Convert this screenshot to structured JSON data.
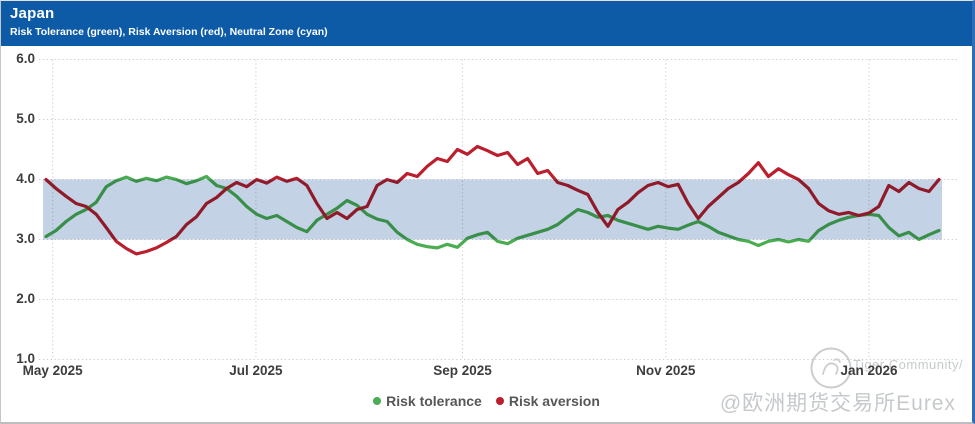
{
  "header": {
    "title": "Japan",
    "subtitle": "Risk Tolerance (green), Risk Aversion (red), Neutral Zone (cyan)"
  },
  "colors": {
    "header_bg": "#0d5aa7",
    "tolerance_green": "#4aad52",
    "aversion_red": "#bb1f2e",
    "neutral_band": "#c3d2e4",
    "grid": "#cdcdcd",
    "axis_text": "#3d3d3d",
    "panel_right_border": "#2f6eb6"
  },
  "axes": {
    "y_ticks": [
      "6.0",
      "5.0",
      "4.0",
      "3.0",
      "2.0",
      "1.0"
    ]
  },
  "watermark": {
    "line1": "Tiger Community/",
    "line2": "@欧洲期货交易所Eurex",
    "logo": "tiger-community-circle-logo"
  },
  "chart_data": {
    "type": "line",
    "title": "Japan",
    "subtitle": "Risk Tolerance (green), Risk Aversion (red), Neutral Zone (cyan)",
    "ylim": [
      1.0,
      6.0
    ],
    "neutral_zone": [
      3.0,
      4.0
    ],
    "grid": "dotted",
    "legend_position": "bottom-center",
    "x_start": "2025-04-29",
    "x_end": "2026-01-22",
    "total_days": 268,
    "points_interval_days": 3,
    "x_ticks": [
      {
        "label": "May 2025",
        "day": 2
      },
      {
        "label": "Jul 2025",
        "day": 63
      },
      {
        "label": "Sep 2025",
        "day": 125
      },
      {
        "label": "Nov 2025",
        "day": 186
      },
      {
        "label": "Jan 2026",
        "day": 247
      }
    ],
    "series": [
      {
        "name": "Risk tolerance",
        "color": "#4aad52",
        "values": [
          3.05,
          3.15,
          3.3,
          3.42,
          3.5,
          3.62,
          3.88,
          3.98,
          4.04,
          3.97,
          4.02,
          3.98,
          4.04,
          4.0,
          3.93,
          3.98,
          4.05,
          3.9,
          3.85,
          3.72,
          3.55,
          3.42,
          3.35,
          3.4,
          3.3,
          3.2,
          3.13,
          3.32,
          3.42,
          3.52,
          3.65,
          3.57,
          3.42,
          3.34,
          3.3,
          3.12,
          3.0,
          2.92,
          2.88,
          2.86,
          2.92,
          2.87,
          3.02,
          3.08,
          3.12,
          2.97,
          2.93,
          3.02,
          3.07,
          3.12,
          3.17,
          3.25,
          3.38,
          3.5,
          3.45,
          3.37,
          3.4,
          3.32,
          3.27,
          3.22,
          3.17,
          3.22,
          3.19,
          3.17,
          3.24,
          3.3,
          3.22,
          3.12,
          3.06,
          3.0,
          2.97,
          2.9,
          2.97,
          3.0,
          2.96,
          3.0,
          2.97,
          3.15,
          3.25,
          3.32,
          3.37,
          3.4,
          3.42,
          3.4,
          3.2,
          3.06,
          3.12,
          3.0,
          3.08,
          3.15
        ]
      },
      {
        "name": "Risk aversion",
        "color": "#bb1f2e",
        "values": [
          4.0,
          3.85,
          3.72,
          3.6,
          3.55,
          3.42,
          3.2,
          2.97,
          2.85,
          2.76,
          2.8,
          2.86,
          2.95,
          3.05,
          3.25,
          3.38,
          3.6,
          3.7,
          3.85,
          3.95,
          3.88,
          4.0,
          3.94,
          4.04,
          3.97,
          4.02,
          3.9,
          3.6,
          3.35,
          3.45,
          3.35,
          3.5,
          3.55,
          3.9,
          4.0,
          3.95,
          4.1,
          4.05,
          4.22,
          4.35,
          4.3,
          4.5,
          4.42,
          4.55,
          4.48,
          4.4,
          4.45,
          4.25,
          4.35,
          4.1,
          4.15,
          3.95,
          3.9,
          3.82,
          3.75,
          3.45,
          3.22,
          3.5,
          3.62,
          3.78,
          3.9,
          3.95,
          3.88,
          3.92,
          3.6,
          3.35,
          3.55,
          3.7,
          3.85,
          3.95,
          4.1,
          4.28,
          4.05,
          4.18,
          4.08,
          4.0,
          3.85,
          3.6,
          3.48,
          3.42,
          3.45,
          3.4,
          3.44,
          3.55,
          3.9,
          3.8,
          3.95,
          3.85,
          3.8,
          4.0
        ]
      }
    ]
  }
}
